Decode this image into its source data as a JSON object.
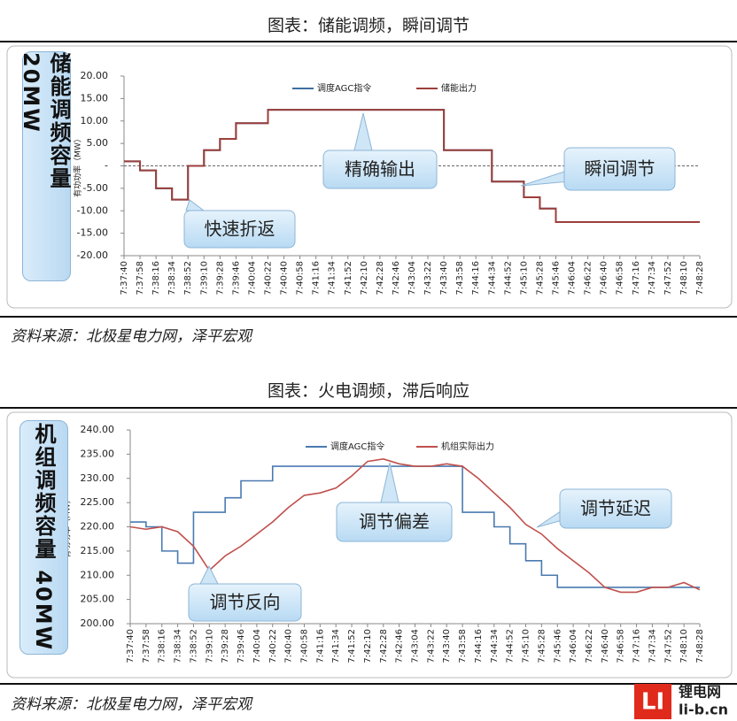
{
  "chart_data": [
    {
      "type": "line",
      "title": "图表：储能调频，瞬间调节",
      "capacity_label": "储能调频容量 20MW",
      "y_label": "有功功率（MW）",
      "categories": [
        "7:37:40",
        "7:37:58",
        "7:38:16",
        "7:38:34",
        "7:38:52",
        "7:39:10",
        "7:39:28",
        "7:39:46",
        "7:40:04",
        "7:40:22",
        "7:40:40",
        "7:40:58",
        "7:41:16",
        "7:41:34",
        "7:41:52",
        "7:42:10",
        "7:42:28",
        "7:42:46",
        "7:43:04",
        "7:43:22",
        "7:43:40",
        "7:43:58",
        "7:44:16",
        "7:44:34",
        "7:44:52",
        "7:45:10",
        "7:45:28",
        "7:45:46",
        "7:46:04",
        "7:46:22",
        "7:46:40",
        "7:46:58",
        "7:47:16",
        "7:47:34",
        "7:47:52",
        "7:48:10",
        "7:48:28"
      ],
      "series": [
        {
          "name": "调度AGC指令",
          "color": "#3f6f9f",
          "drawstyle": "steps-post",
          "values": [
            1,
            -1,
            -5,
            -7.5,
            0,
            3.5,
            6,
            9.5,
            9.5,
            12.5,
            12.5,
            12.5,
            12.5,
            12.5,
            12.5,
            12.5,
            12.5,
            12.5,
            12.5,
            12.5,
            3.5,
            3.5,
            3.5,
            -3.5,
            -3.5,
            -7,
            -9.5,
            -12.5,
            -12.5,
            -12.5,
            -12.5,
            -12.5,
            -12.5,
            -12.5,
            -12.5,
            -12.5,
            -12.5
          ]
        },
        {
          "name": "储能出力",
          "color": "#9c3f3b",
          "drawstyle": "steps-post",
          "values": [
            1,
            -1,
            -5,
            -7.5,
            0,
            3.5,
            6,
            9.5,
            9.5,
            12.5,
            12.5,
            12.5,
            12.5,
            12.5,
            12.5,
            12.5,
            12.5,
            12.5,
            12.5,
            12.5,
            3.5,
            3.5,
            3.5,
            -3.5,
            -3.5,
            -7,
            -9.5,
            -12.5,
            -12.5,
            -12.5,
            -12.5,
            -12.5,
            -12.5,
            -12.5,
            -12.5,
            -12.5,
            -12.5
          ]
        }
      ],
      "ylim": [
        -20,
        20
      ],
      "yticks": [
        {
          "value": 20,
          "label": "20.00"
        },
        {
          "value": 15,
          "label": "15.00"
        },
        {
          "value": 10,
          "label": "10.00"
        },
        {
          "value": 5,
          "label": "5.00"
        },
        {
          "value": 0,
          "label": "-"
        },
        {
          "value": -5,
          "label": "-5.00"
        },
        {
          "value": -10,
          "label": "-10.00"
        },
        {
          "value": -15,
          "label": "-15.00"
        },
        {
          "value": -20,
          "label": "-20.00"
        }
      ],
      "grid": false,
      "annotations": [
        "精确输出",
        "快速折返",
        "瞬间调节"
      ],
      "source": "资料来源：北极星电力网，泽平宏观"
    },
    {
      "type": "line",
      "title": "图表：火电调频，滞后响应",
      "capacity_label": "机组调频容量 40MW",
      "y_label": "有功功率（MW）",
      "categories": [
        "7:37:40",
        "7:37:58",
        "7:38:16",
        "7:38:34",
        "7:38:52",
        "7:39:10",
        "7:39:28",
        "7:39:46",
        "7:40:04",
        "7:40:22",
        "7:40:40",
        "7:40:58",
        "7:41:16",
        "7:41:34",
        "7:41:52",
        "7:42:10",
        "7:42:28",
        "7:42:46",
        "7:43:04",
        "7:43:22",
        "7:43:40",
        "7:43:58",
        "7:44:16",
        "7:44:34",
        "7:44:52",
        "7:45:10",
        "7:45:28",
        "7:45:46",
        "7:46:04",
        "7:46:22",
        "7:46:40",
        "7:46:58",
        "7:47:16",
        "7:47:34",
        "7:47:52",
        "7:48:10",
        "7:48:28"
      ],
      "series": [
        {
          "name": "调度AGC指令",
          "color": "#4a7ab0",
          "drawstyle": "steps-post",
          "values": [
            221,
            220,
            215,
            212.5,
            223,
            223,
            226,
            229.5,
            229.5,
            232.5,
            232.5,
            232.5,
            232.5,
            232.5,
            232.5,
            232.5,
            232.5,
            232.5,
            232.5,
            232.5,
            232.5,
            223,
            223,
            220,
            216.5,
            213,
            210,
            207.5,
            207.5,
            207.5,
            207.5,
            207.5,
            207.5,
            207.5,
            207.5,
            207.5,
            207.5
          ]
        },
        {
          "name": "机组实际出力",
          "color": "#c0504d",
          "values": [
            220,
            219.5,
            220,
            219,
            216,
            211,
            214,
            216,
            218.5,
            221,
            224,
            226.5,
            227,
            228,
            230.5,
            233.5,
            234,
            233,
            232.5,
            232.5,
            233,
            232.5,
            230,
            227,
            224,
            220.5,
            218.5,
            215.5,
            213,
            210.5,
            207.5,
            206.5,
            206.5,
            207.5,
            207.5,
            208.5,
            207
          ]
        }
      ],
      "ylim": [
        200,
        240
      ],
      "yticks": [
        {
          "value": 240,
          "label": "240.00"
        },
        {
          "value": 235,
          "label": "235.00"
        },
        {
          "value": 230,
          "label": "230.00"
        },
        {
          "value": 225,
          "label": "225.00"
        },
        {
          "value": 220,
          "label": "220.00"
        },
        {
          "value": 215,
          "label": "215.00"
        },
        {
          "value": 210,
          "label": "210.00"
        },
        {
          "value": 205,
          "label": "205.00"
        },
        {
          "value": 200,
          "label": "200.00"
        }
      ],
      "grid": false,
      "annotations": [
        "调节偏差",
        "调节反向",
        "调节延迟"
      ],
      "source": "资料来源：北极星电力网，泽平宏观"
    }
  ],
  "logo": {
    "name": "锂电网",
    "url": "li-b.cn"
  }
}
